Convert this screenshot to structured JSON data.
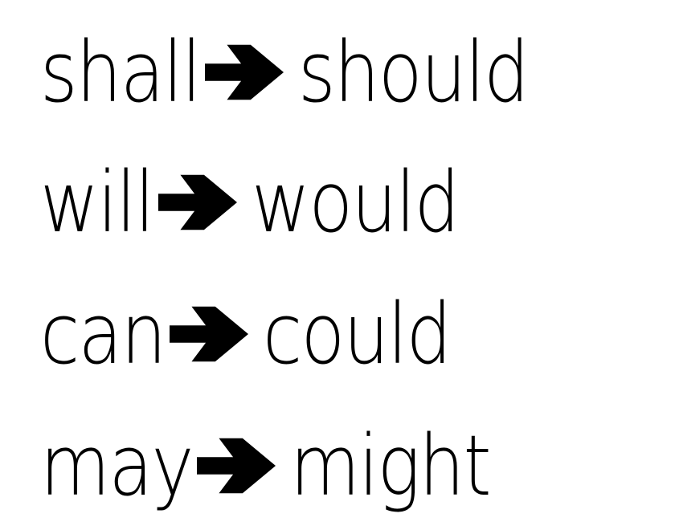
{
  "pairs": [
    {
      "from": "shall",
      "to": "should"
    },
    {
      "from": "will",
      "to": "would"
    },
    {
      "from": "can",
      "to": "could"
    },
    {
      "from": "may",
      "to": "might"
    }
  ],
  "colors": {
    "text": "#000000",
    "background": "#ffffff"
  },
  "icons": {
    "arrow": "right-arrow-icon"
  }
}
